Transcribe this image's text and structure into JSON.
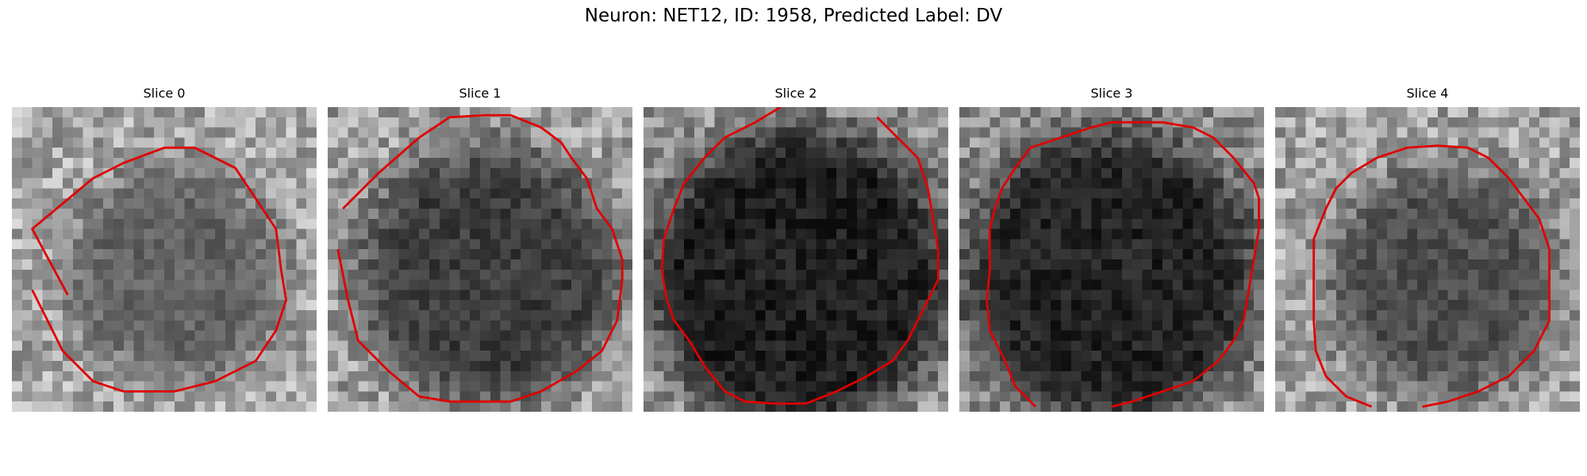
{
  "figure": {
    "title": "Neuron: NET12, ID: 1958, Predicted Label: DV"
  },
  "colors": {
    "contour": "#e00000"
  },
  "panels": [
    {
      "label": "Slice 0",
      "background_level": 0.66,
      "blob": {
        "cx": 16.2,
        "cy": 16.5,
        "r": 10.6,
        "level": 0.39
      },
      "contour": [
        [
          5.5,
          18.5
        ],
        [
          2,
          12
        ],
        [
          8,
          7
        ],
        [
          11,
          5.5
        ],
        [
          15,
          4
        ],
        [
          18,
          4
        ],
        [
          22,
          6
        ],
        [
          24,
          9
        ],
        [
          26,
          12
        ],
        [
          26.5,
          16
        ],
        [
          27,
          19
        ],
        [
          26,
          22
        ],
        [
          24,
          25
        ],
        [
          20,
          27
        ],
        [
          16,
          28
        ],
        [
          11,
          28
        ],
        [
          8,
          27
        ],
        [
          5,
          24
        ],
        [
          3,
          20
        ],
        [
          2,
          18
        ]
      ]
    },
    {
      "label": "Slice 1",
      "background_level": 0.62,
      "blob": {
        "cx": 15.8,
        "cy": 16.5,
        "r": 12.8,
        "level": 0.24
      },
      "contour": [
        [
          1.5,
          10
        ],
        [
          5,
          6.5
        ],
        [
          9,
          3
        ],
        [
          12,
          1
        ],
        [
          15.5,
          0.8
        ],
        [
          18,
          0.8
        ],
        [
          21,
          2
        ],
        [
          23,
          3.5
        ],
        [
          24,
          5
        ],
        [
          25.5,
          7
        ],
        [
          26.5,
          10
        ],
        [
          28,
          12
        ],
        [
          29,
          15
        ],
        [
          29,
          17
        ],
        [
          28.5,
          21
        ],
        [
          27,
          24
        ],
        [
          24.5,
          26
        ],
        [
          21,
          28
        ],
        [
          18,
          29
        ],
        [
          15,
          29
        ],
        [
          12,
          29
        ],
        [
          9,
          28.5
        ],
        [
          6,
          26
        ],
        [
          3,
          23
        ],
        [
          2,
          19
        ],
        [
          1,
          14
        ]
      ]
    },
    {
      "label": "Slice 2",
      "background_level": 0.58,
      "blob": {
        "cx": 15.4,
        "cy": 16.8,
        "r": 14.8,
        "level": 0.12
      },
      "contour": [
        [
          13.5,
          0
        ],
        [
          11,
          1.5
        ],
        [
          8,
          3
        ],
        [
          6,
          5
        ],
        [
          4,
          7.5
        ],
        [
          3,
          10
        ],
        [
          2,
          13
        ],
        [
          1.8,
          16
        ],
        [
          2.3,
          19
        ],
        [
          3,
          21
        ],
        [
          4.5,
          23
        ],
        [
          6,
          25.5
        ],
        [
          8,
          28
        ],
        [
          10,
          29
        ],
        [
          13,
          29.2
        ],
        [
          16,
          29.2
        ],
        [
          19,
          28
        ],
        [
          22,
          26.5
        ],
        [
          24.5,
          25
        ],
        [
          26,
          23
        ],
        [
          27,
          21
        ],
        [
          28,
          19
        ],
        [
          29,
          17
        ],
        [
          29,
          14
        ],
        [
          28.5,
          11
        ],
        [
          28,
          8
        ],
        [
          27,
          5
        ],
        [
          25,
          3
        ],
        [
          23,
          1
        ]
      ]
    },
    {
      "label": "Slice 3",
      "background_level": 0.55,
      "blob": {
        "cx": 15.0,
        "cy": 16.8,
        "r": 14.4,
        "level": 0.14
      },
      "contour": [
        [
          7.5,
          29.5
        ],
        [
          5.5,
          27.5
        ],
        [
          4.5,
          25
        ],
        [
          3,
          22
        ],
        [
          2.7,
          19
        ],
        [
          3,
          16
        ],
        [
          3,
          12
        ],
        [
          3.5,
          10
        ],
        [
          4.2,
          8
        ],
        [
          5.5,
          6
        ],
        [
          7,
          4
        ],
        [
          10,
          3
        ],
        [
          13,
          2
        ],
        [
          15,
          1.5
        ],
        [
          17,
          1.5
        ],
        [
          20,
          1.5
        ],
        [
          23,
          2
        ],
        [
          25,
          3
        ],
        [
          27,
          5
        ],
        [
          29,
          7.5
        ],
        [
          29.5,
          9
        ],
        [
          29.5,
          12
        ],
        [
          29,
          15
        ],
        [
          28.5,
          18
        ],
        [
          28,
          21
        ],
        [
          27,
          23
        ],
        [
          25.5,
          25
        ],
        [
          23,
          27
        ],
        [
          20,
          28
        ],
        [
          17,
          29
        ],
        [
          15,
          29.5
        ]
      ]
    },
    {
      "label": "Slice 4",
      "background_level": 0.64,
      "blob": {
        "cx": 16.5,
        "cy": 17.2,
        "r": 11.2,
        "level": 0.31
      },
      "contour": [
        [
          9.5,
          29.5
        ],
        [
          7,
          28.5
        ],
        [
          5,
          26.5
        ],
        [
          4,
          24
        ],
        [
          3.8,
          21
        ],
        [
          3.8,
          17
        ],
        [
          3.8,
          13
        ],
        [
          5,
          10
        ],
        [
          6,
          8
        ],
        [
          7.5,
          6.5
        ],
        [
          10,
          5
        ],
        [
          13,
          4
        ],
        [
          16,
          3.8
        ],
        [
          19,
          4
        ],
        [
          21,
          5
        ],
        [
          23,
          7
        ],
        [
          24.5,
          9
        ],
        [
          26,
          11
        ],
        [
          27,
          14
        ],
        [
          27,
          18
        ],
        [
          27,
          21
        ],
        [
          25.5,
          24
        ],
        [
          23,
          26.5
        ],
        [
          20,
          28
        ],
        [
          17,
          29
        ],
        [
          14.5,
          29.5
        ]
      ]
    }
  ]
}
